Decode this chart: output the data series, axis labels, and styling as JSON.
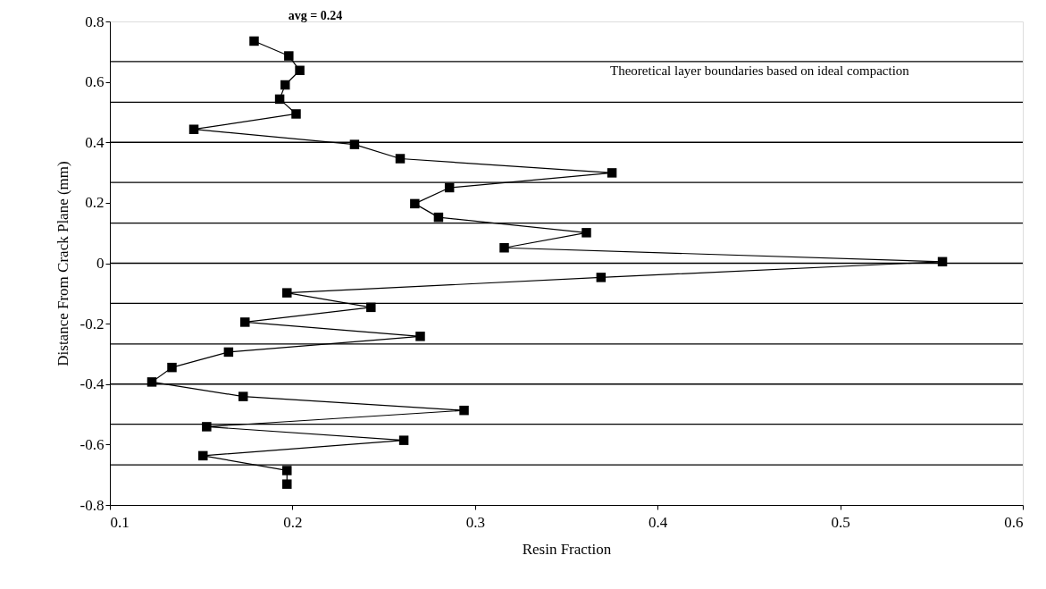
{
  "chart_data": {
    "type": "line",
    "xlabel": "Resin Fraction",
    "ylabel": "Distance From Crack Plane (mm)",
    "x": [
      0.179,
      0.198,
      0.204,
      0.196,
      0.193,
      0.202,
      0.146,
      0.234,
      0.259,
      0.375,
      0.286,
      0.267,
      0.28,
      0.361,
      0.316,
      0.556,
      0.369,
      0.197,
      0.243,
      0.174,
      0.27,
      0.165,
      0.134,
      0.123,
      0.173,
      0.294,
      0.153,
      0.261,
      0.151,
      0.197,
      0.197
    ],
    "values": [
      0.735,
      0.686,
      0.638,
      0.59,
      0.543,
      0.494,
      0.443,
      0.393,
      0.346,
      0.299,
      0.25,
      0.197,
      0.152,
      0.101,
      0.051,
      0.005,
      -0.047,
      -0.098,
      -0.146,
      -0.195,
      -0.242,
      -0.294,
      -0.345,
      -0.393,
      -0.441,
      -0.487,
      -0.541,
      -0.586,
      -0.637,
      -0.686,
      -0.731
    ],
    "color": "#000000",
    "marker": "square",
    "line_style": "solid",
    "xlim": [
      0.1,
      0.6
    ],
    "xticks": [
      0.1,
      0.2,
      0.3,
      0.4,
      0.5,
      0.6
    ],
    "ylim": [
      -0.8,
      0.8
    ],
    "yticks": [
      -0.8,
      -0.6,
      -0.4,
      -0.2,
      0,
      0.2,
      0.4,
      0.6,
      0.8
    ],
    "grid": false,
    "ref_lines": [
      {
        "axis": "y",
        "value": 0.667,
        "color": "#000000"
      },
      {
        "axis": "y",
        "value": 0.533,
        "color": "#000000"
      },
      {
        "axis": "y",
        "value": 0.4,
        "color": "#000000"
      },
      {
        "axis": "y",
        "value": 0.267,
        "color": "#000000"
      },
      {
        "axis": "y",
        "value": 0.133,
        "color": "#000000"
      },
      {
        "axis": "y",
        "value": 0,
        "color": "#000000"
      },
      {
        "axis": "y",
        "value": -0.133,
        "color": "#000000"
      },
      {
        "axis": "y",
        "value": -0.267,
        "color": "#000000"
      },
      {
        "axis": "y",
        "value": -0.4,
        "color": "#000000"
      },
      {
        "axis": "y",
        "value": -0.533,
        "color": "#000000"
      },
      {
        "axis": "y",
        "value": -0.667,
        "color": "#000000"
      }
    ],
    "annotations": [
      "avg = 0.24",
      "Theoretical layer boundaries based on ideal compaction"
    ]
  }
}
